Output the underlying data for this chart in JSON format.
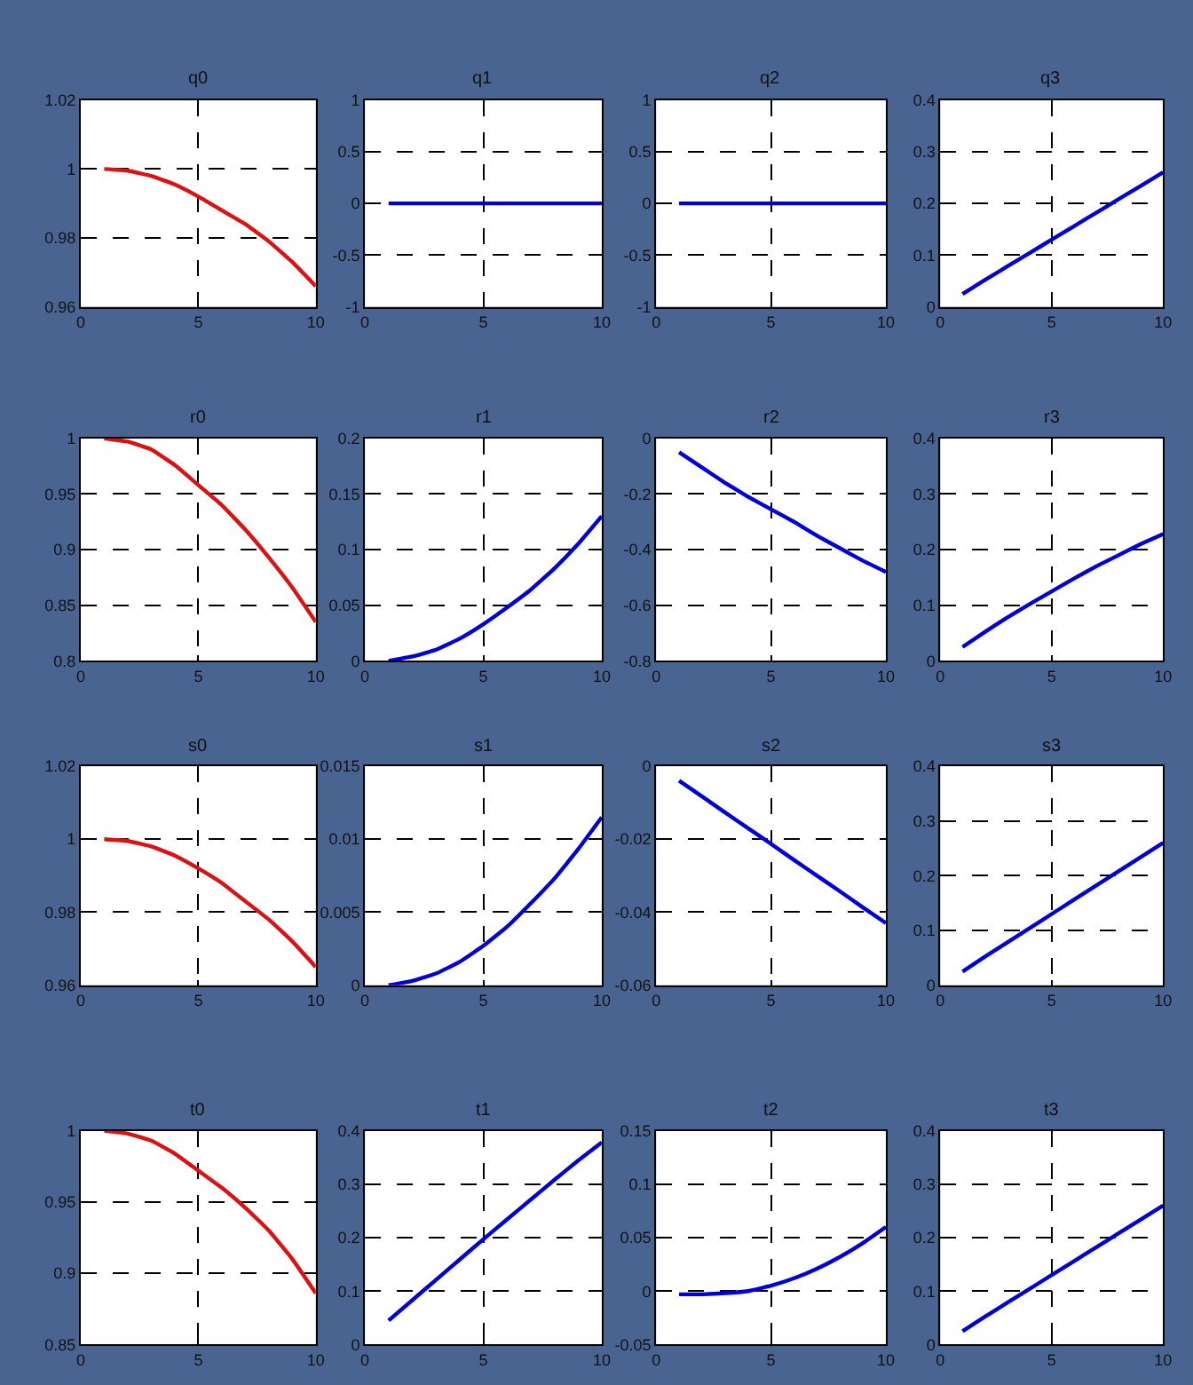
{
  "chart_data": [
    {
      "type": "line",
      "title": "q0",
      "x": [
        1,
        2,
        3,
        4,
        5,
        6,
        7,
        8,
        9,
        10
      ],
      "series": [
        {
          "color": "#dd1111",
          "values": [
            1.0,
            0.9995,
            0.998,
            0.9955,
            0.992,
            0.988,
            0.984,
            0.979,
            0.973,
            0.966
          ]
        }
      ],
      "xlim": [
        0,
        10
      ],
      "xticks": [
        0,
        5,
        10
      ],
      "ylim": [
        0.96,
        1.02
      ],
      "yticks": [
        0.96,
        0.98,
        1,
        1.02
      ],
      "grid": true,
      "line_style": "solid"
    },
    {
      "type": "line",
      "title": "q1",
      "x": [
        1,
        2,
        3,
        4,
        5,
        6,
        7,
        8,
        9,
        10
      ],
      "series": [
        {
          "color": "#0000dd",
          "values": [
            0,
            0,
            0,
            0,
            0,
            0,
            0,
            0,
            0,
            0
          ]
        }
      ],
      "xlim": [
        0,
        10
      ],
      "xticks": [
        0,
        5,
        10
      ],
      "ylim": [
        -1,
        1
      ],
      "yticks": [
        -1,
        -0.5,
        0,
        0.5,
        1
      ],
      "grid": true,
      "line_style": "solid"
    },
    {
      "type": "line",
      "title": "q2",
      "x": [
        1,
        2,
        3,
        4,
        5,
        6,
        7,
        8,
        9,
        10
      ],
      "series": [
        {
          "color": "#0000dd",
          "values": [
            0,
            0,
            0,
            0,
            0,
            0,
            0,
            0,
            0,
            0
          ]
        }
      ],
      "xlim": [
        0,
        10
      ],
      "xticks": [
        0,
        5,
        10
      ],
      "ylim": [
        -1,
        1
      ],
      "yticks": [
        -1,
        -0.5,
        0,
        0.5,
        1
      ],
      "grid": true,
      "line_style": "solid"
    },
    {
      "type": "line",
      "title": "q3",
      "x": [
        1,
        2,
        3,
        4,
        5,
        6,
        7,
        8,
        9,
        10
      ],
      "series": [
        {
          "color": "#0000dd",
          "values": [
            0.025,
            0.052,
            0.078,
            0.104,
            0.13,
            0.156,
            0.182,
            0.208,
            0.234,
            0.26
          ]
        }
      ],
      "xlim": [
        0,
        10
      ],
      "xticks": [
        0,
        5,
        10
      ],
      "ylim": [
        0,
        0.4
      ],
      "yticks": [
        0,
        0.1,
        0.2,
        0.3,
        0.4
      ],
      "grid": true,
      "line_style": "solid"
    },
    {
      "type": "line",
      "title": "r0",
      "x": [
        1,
        2,
        3,
        4,
        5,
        6,
        7,
        8,
        9,
        10
      ],
      "series": [
        {
          "color": "#dd1111",
          "values": [
            1.0,
            0.997,
            0.99,
            0.976,
            0.958,
            0.94,
            0.918,
            0.893,
            0.866,
            0.835
          ]
        }
      ],
      "xlim": [
        0,
        10
      ],
      "xticks": [
        0,
        5,
        10
      ],
      "ylim": [
        0.8,
        1
      ],
      "yticks": [
        0.8,
        0.85,
        0.9,
        0.95,
        1
      ],
      "grid": true,
      "line_style": "solid"
    },
    {
      "type": "line",
      "title": "r1",
      "x": [
        1,
        2,
        3,
        4,
        5,
        6,
        7,
        8,
        9,
        10
      ],
      "series": [
        {
          "color": "#0000dd",
          "values": [
            0,
            0.004,
            0.01,
            0.02,
            0.033,
            0.048,
            0.064,
            0.083,
            0.105,
            0.13
          ]
        }
      ],
      "xlim": [
        0,
        10
      ],
      "xticks": [
        0,
        5,
        10
      ],
      "ylim": [
        0,
        0.2
      ],
      "yticks": [
        0,
        0.05,
        0.1,
        0.15,
        0.2
      ],
      "grid": true,
      "line_style": "solid"
    },
    {
      "type": "line",
      "title": "r2",
      "x": [
        1,
        2,
        3,
        4,
        5,
        6,
        7,
        8,
        9,
        10
      ],
      "series": [
        {
          "color": "#0000dd",
          "values": [
            -0.05,
            -0.105,
            -0.16,
            -0.21,
            -0.255,
            -0.3,
            -0.35,
            -0.395,
            -0.44,
            -0.48
          ]
        }
      ],
      "xlim": [
        0,
        10
      ],
      "xticks": [
        0,
        5,
        10
      ],
      "ylim": [
        -0.8,
        0
      ],
      "yticks": [
        -0.8,
        -0.6,
        -0.4,
        -0.2,
        0
      ],
      "grid": true,
      "line_style": "solid"
    },
    {
      "type": "line",
      "title": "r3",
      "x": [
        1,
        2,
        3,
        4,
        5,
        6,
        7,
        8,
        9,
        10
      ],
      "series": [
        {
          "color": "#0000dd",
          "values": [
            0.025,
            0.052,
            0.078,
            0.102,
            0.125,
            0.148,
            0.17,
            0.19,
            0.21,
            0.228
          ]
        }
      ],
      "xlim": [
        0,
        10
      ],
      "xticks": [
        0,
        5,
        10
      ],
      "ylim": [
        0,
        0.4
      ],
      "yticks": [
        0,
        0.1,
        0.2,
        0.3,
        0.4
      ],
      "grid": true,
      "line_style": "solid"
    },
    {
      "type": "line",
      "title": "s0",
      "x": [
        1,
        2,
        3,
        4,
        5,
        6,
        7,
        8,
        9,
        10
      ],
      "series": [
        {
          "color": "#dd1111",
          "values": [
            1.0,
            0.9995,
            0.998,
            0.9955,
            0.992,
            0.988,
            0.983,
            0.978,
            0.972,
            0.965
          ]
        }
      ],
      "xlim": [
        0,
        10
      ],
      "xticks": [
        0,
        5,
        10
      ],
      "ylim": [
        0.96,
        1.02
      ],
      "yticks": [
        0.96,
        0.98,
        1,
        1.02
      ],
      "grid": true,
      "line_style": "solid"
    },
    {
      "type": "line",
      "title": "s1",
      "x": [
        1,
        2,
        3,
        4,
        5,
        6,
        7,
        8,
        9,
        10
      ],
      "series": [
        {
          "color": "#0000dd",
          "values": [
            0,
            0.0003,
            0.0008,
            0.0016,
            0.0027,
            0.004,
            0.0056,
            0.0073,
            0.0093,
            0.0115
          ]
        }
      ],
      "xlim": [
        0,
        10
      ],
      "xticks": [
        0,
        5,
        10
      ],
      "ylim": [
        0,
        0.015
      ],
      "yticks": [
        0,
        0.005,
        0.01,
        0.015
      ],
      "grid": true,
      "line_style": "solid"
    },
    {
      "type": "line",
      "title": "s2",
      "x": [
        1,
        2,
        3,
        4,
        5,
        6,
        7,
        8,
        9,
        10
      ],
      "series": [
        {
          "color": "#0000dd",
          "values": [
            -0.004,
            -0.0083,
            -0.0127,
            -0.017,
            -0.0213,
            -0.0257,
            -0.03,
            -0.0343,
            -0.0387,
            -0.043
          ]
        }
      ],
      "xlim": [
        0,
        10
      ],
      "xticks": [
        0,
        5,
        10
      ],
      "ylim": [
        -0.06,
        0
      ],
      "yticks": [
        -0.06,
        -0.04,
        -0.02,
        0
      ],
      "grid": true,
      "line_style": "solid"
    },
    {
      "type": "line",
      "title": "s3",
      "x": [
        1,
        2,
        3,
        4,
        5,
        6,
        7,
        8,
        9,
        10
      ],
      "series": [
        {
          "color": "#0000dd",
          "values": [
            0.025,
            0.052,
            0.078,
            0.104,
            0.13,
            0.156,
            0.182,
            0.208,
            0.234,
            0.26
          ]
        }
      ],
      "xlim": [
        0,
        10
      ],
      "xticks": [
        0,
        5,
        10
      ],
      "ylim": [
        0,
        0.4
      ],
      "yticks": [
        0,
        0.1,
        0.2,
        0.3,
        0.4
      ],
      "grid": true,
      "line_style": "solid"
    },
    {
      "type": "line",
      "title": "t0",
      "x": [
        1,
        2,
        3,
        4,
        5,
        6,
        7,
        8,
        9,
        10
      ],
      "series": [
        {
          "color": "#dd1111",
          "values": [
            1.0,
            0.998,
            0.993,
            0.984,
            0.972,
            0.96,
            0.946,
            0.93,
            0.91,
            0.886
          ]
        }
      ],
      "xlim": [
        0,
        10
      ],
      "xticks": [
        0,
        5,
        10
      ],
      "ylim": [
        0.85,
        1
      ],
      "yticks": [
        0.85,
        0.9,
        0.95,
        1
      ],
      "grid": true,
      "line_style": "solid"
    },
    {
      "type": "line",
      "title": "t1",
      "x": [
        1,
        2,
        3,
        4,
        5,
        6,
        7,
        8,
        9,
        10
      ],
      "series": [
        {
          "color": "#0000dd",
          "values": [
            0.045,
            0.083,
            0.121,
            0.159,
            0.197,
            0.234,
            0.271,
            0.308,
            0.344,
            0.378
          ]
        }
      ],
      "xlim": [
        0,
        10
      ],
      "xticks": [
        0,
        5,
        10
      ],
      "ylim": [
        0,
        0.4
      ],
      "yticks": [
        0,
        0.1,
        0.2,
        0.3,
        0.4
      ],
      "grid": true,
      "line_style": "solid"
    },
    {
      "type": "line",
      "title": "t2",
      "x": [
        1,
        2,
        3,
        4,
        5,
        6,
        7,
        8,
        9,
        10
      ],
      "series": [
        {
          "color": "#0000dd",
          "values": [
            -0.003,
            -0.003,
            -0.002,
            0,
            0.005,
            0.012,
            0.021,
            0.032,
            0.045,
            0.06
          ]
        }
      ],
      "xlim": [
        0,
        10
      ],
      "xticks": [
        0,
        5,
        10
      ],
      "ylim": [
        -0.05,
        0.15
      ],
      "yticks": [
        -0.05,
        0,
        0.05,
        0.1,
        0.15
      ],
      "grid": true,
      "line_style": "solid"
    },
    {
      "type": "line",
      "title": "t3",
      "x": [
        1,
        2,
        3,
        4,
        5,
        6,
        7,
        8,
        9,
        10
      ],
      "series": [
        {
          "color": "#0000dd",
          "values": [
            0.025,
            0.052,
            0.078,
            0.104,
            0.13,
            0.156,
            0.182,
            0.208,
            0.234,
            0.26
          ]
        }
      ],
      "xlim": [
        0,
        10
      ],
      "xticks": [
        0,
        5,
        10
      ],
      "ylim": [
        0,
        0.4
      ],
      "yticks": [
        0,
        0.1,
        0.2,
        0.3,
        0.4
      ],
      "grid": true,
      "line_style": "solid"
    }
  ]
}
